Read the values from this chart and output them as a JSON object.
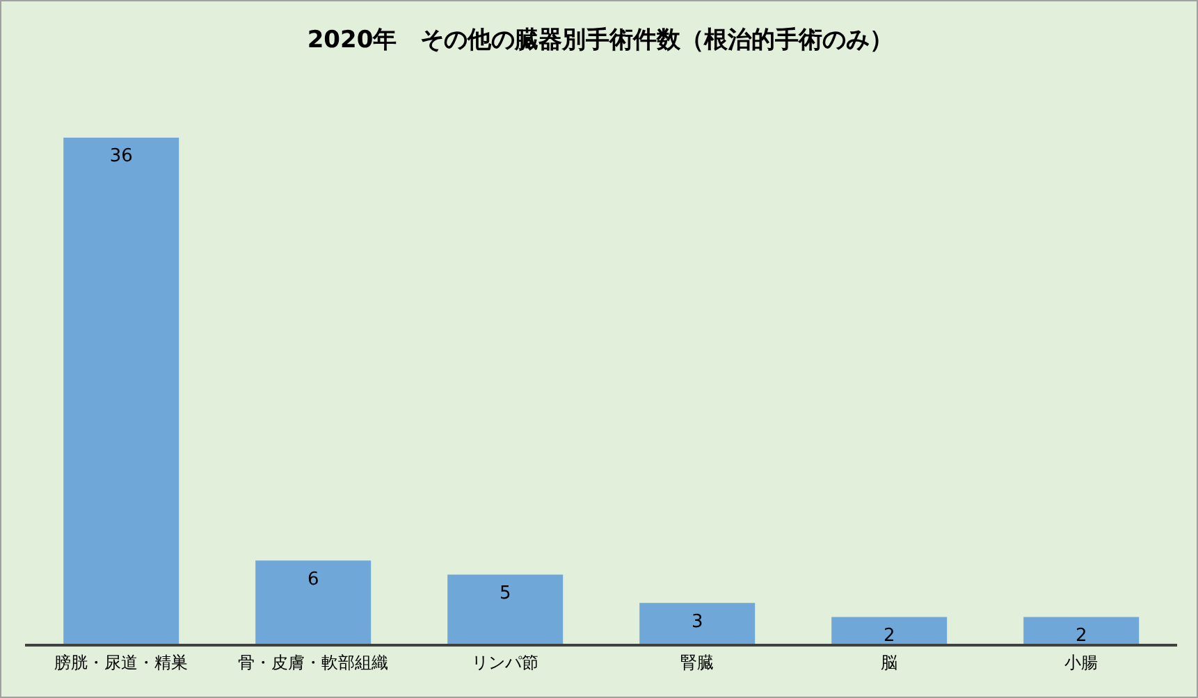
{
  "chart_data": {
    "type": "bar",
    "title": "2020年　その他の臓器別手術件数（根治的手術のみ）",
    "categories": [
      "膀胱・尿道・精巣",
      "骨・皮膚・軟部組織",
      "リンパ節",
      "腎臓",
      "脳",
      "小腸"
    ],
    "values": [
      36,
      6,
      5,
      3,
      2,
      2
    ],
    "color": "#70a7d9",
    "data_labels": true
  }
}
